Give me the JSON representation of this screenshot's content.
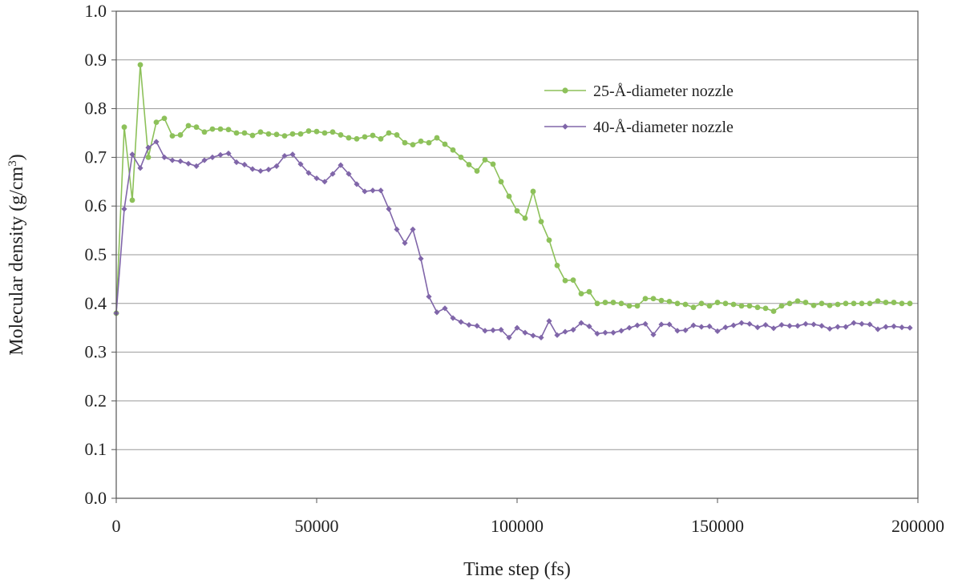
{
  "chart_data": {
    "type": "line",
    "title": "",
    "xlabel": "Time step (fs)",
    "ylabel": "Molecular density (g/cm",
    "ylabel_sup": "3",
    "ylabel_tail": ")",
    "xlim": [
      0,
      200000
    ],
    "ylim": [
      0,
      1.0
    ],
    "x_ticks": [
      0,
      50000,
      100000,
      150000,
      200000
    ],
    "y_ticks": [
      "0.0",
      "0.1",
      "0.2",
      "0.3",
      "0.4",
      "0.5",
      "0.6",
      "0.7",
      "0.8",
      "0.9",
      "1.0"
    ],
    "grid": "horizontal",
    "legend_position": "upper-right",
    "series": [
      {
        "name": "25-Å-diameter nozzle",
        "color": "#8dc15a",
        "marker": "circle",
        "x": [
          0,
          2000,
          4000,
          6000,
          8000,
          10000,
          12000,
          14000,
          16000,
          18000,
          20000,
          22000,
          24000,
          26000,
          28000,
          30000,
          32000,
          34000,
          36000,
          38000,
          40000,
          42000,
          44000,
          46000,
          48000,
          50000,
          52000,
          54000,
          56000,
          58000,
          60000,
          62000,
          64000,
          66000,
          68000,
          70000,
          72000,
          74000,
          76000,
          78000,
          80000,
          82000,
          84000,
          86000,
          88000,
          90000,
          92000,
          94000,
          96000,
          98000,
          100000,
          102000,
          104000,
          106000,
          108000,
          110000,
          112000,
          114000,
          116000,
          118000,
          120000,
          122000,
          124000,
          126000,
          128000,
          130000,
          132000,
          134000,
          136000,
          138000,
          140000,
          142000,
          144000,
          146000,
          148000,
          150000,
          152000,
          154000,
          156000,
          158000,
          160000,
          162000,
          164000,
          166000,
          168000,
          170000,
          172000,
          174000,
          176000,
          178000,
          180000,
          182000,
          184000,
          186000,
          188000,
          190000,
          192000,
          194000,
          196000,
          198000
        ],
        "values": [
          0.38,
          0.762,
          0.612,
          0.89,
          0.7,
          0.772,
          0.78,
          0.744,
          0.746,
          0.765,
          0.762,
          0.752,
          0.758,
          0.758,
          0.757,
          0.75,
          0.75,
          0.745,
          0.752,
          0.748,
          0.747,
          0.744,
          0.748,
          0.748,
          0.754,
          0.753,
          0.75,
          0.752,
          0.746,
          0.74,
          0.738,
          0.742,
          0.745,
          0.738,
          0.75,
          0.746,
          0.73,
          0.726,
          0.733,
          0.73,
          0.74,
          0.727,
          0.715,
          0.7,
          0.685,
          0.672,
          0.695,
          0.686,
          0.65,
          0.62,
          0.59,
          0.575,
          0.63,
          0.568,
          0.53,
          0.478,
          0.447,
          0.448,
          0.42,
          0.424,
          0.4,
          0.402,
          0.402,
          0.4,
          0.395,
          0.395,
          0.41,
          0.41,
          0.406,
          0.404,
          0.4,
          0.398,
          0.392,
          0.4,
          0.395,
          0.402,
          0.4,
          0.398,
          0.395,
          0.395,
          0.392,
          0.39,
          0.384,
          0.395,
          0.4,
          0.405,
          0.402,
          0.396,
          0.4,
          0.396,
          0.398,
          0.4,
          0.4,
          0.4,
          0.4,
          0.405,
          0.402,
          0.402,
          0.4,
          0.4
        ]
      },
      {
        "name": "40-Å-diameter nozzle",
        "color": "#8066a9",
        "marker": "diamond",
        "x": [
          0,
          2000,
          4000,
          6000,
          8000,
          10000,
          12000,
          14000,
          16000,
          18000,
          20000,
          22000,
          24000,
          26000,
          28000,
          30000,
          32000,
          34000,
          36000,
          38000,
          40000,
          42000,
          44000,
          46000,
          48000,
          50000,
          52000,
          54000,
          56000,
          58000,
          60000,
          62000,
          64000,
          66000,
          68000,
          70000,
          72000,
          74000,
          76000,
          78000,
          80000,
          82000,
          84000,
          86000,
          88000,
          90000,
          92000,
          94000,
          96000,
          98000,
          100000,
          102000,
          104000,
          106000,
          108000,
          110000,
          112000,
          114000,
          116000,
          118000,
          120000,
          122000,
          124000,
          126000,
          128000,
          130000,
          132000,
          134000,
          136000,
          138000,
          140000,
          142000,
          144000,
          146000,
          148000,
          150000,
          152000,
          154000,
          156000,
          158000,
          160000,
          162000,
          164000,
          166000,
          168000,
          170000,
          172000,
          174000,
          176000,
          178000,
          180000,
          182000,
          184000,
          186000,
          188000,
          190000,
          192000,
          194000,
          196000,
          198000
        ],
        "values": [
          0.38,
          0.594,
          0.706,
          0.678,
          0.72,
          0.732,
          0.7,
          0.694,
          0.692,
          0.687,
          0.682,
          0.694,
          0.7,
          0.705,
          0.708,
          0.69,
          0.685,
          0.676,
          0.672,
          0.675,
          0.682,
          0.703,
          0.706,
          0.686,
          0.668,
          0.657,
          0.65,
          0.666,
          0.684,
          0.666,
          0.645,
          0.63,
          0.632,
          0.632,
          0.594,
          0.552,
          0.524,
          0.552,
          0.492,
          0.414,
          0.382,
          0.39,
          0.37,
          0.362,
          0.356,
          0.354,
          0.344,
          0.345,
          0.346,
          0.33,
          0.35,
          0.34,
          0.334,
          0.33,
          0.364,
          0.335,
          0.342,
          0.346,
          0.36,
          0.353,
          0.338,
          0.34,
          0.34,
          0.344,
          0.35,
          0.355,
          0.358,
          0.336,
          0.357,
          0.357,
          0.344,
          0.345,
          0.355,
          0.352,
          0.353,
          0.343,
          0.351,
          0.355,
          0.36,
          0.358,
          0.351,
          0.356,
          0.349,
          0.356,
          0.354,
          0.354,
          0.358,
          0.357,
          0.354,
          0.348,
          0.352,
          0.352,
          0.36,
          0.358,
          0.357,
          0.347,
          0.352,
          0.353,
          0.351,
          0.35
        ]
      }
    ]
  }
}
